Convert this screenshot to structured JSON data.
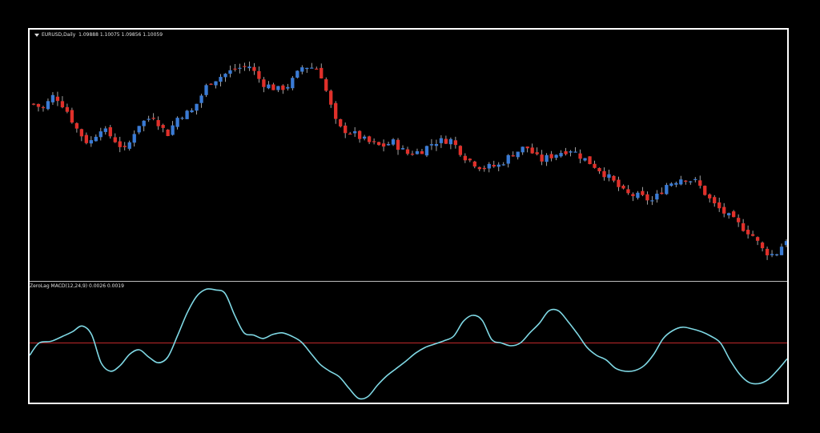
{
  "price_panel": {
    "symbol": "EURUSD,Daily",
    "ohlc_text": "1.09888 1.10075 1.09856 1.10059"
  },
  "macd_panel": {
    "title": "ZeroLag MACD(12,24,9) 0.0026 0.0019"
  },
  "colors": {
    "background": "#000000",
    "bull": "#3a7bd5",
    "bear": "#e0302a",
    "macd_line": "#7fd8e4",
    "zero_line": "#c0282a",
    "frame": "#ffffff"
  },
  "chart_data": [
    {
      "type": "candlestick",
      "title": "EURUSD,Daily",
      "y_range": [
        0,
        100
      ],
      "close_path": [
        [
          0,
          72
        ],
        [
          4,
          70
        ],
        [
          9,
          76
        ],
        [
          14,
          70
        ],
        [
          19,
          61
        ],
        [
          24,
          55
        ],
        [
          29,
          62
        ],
        [
          34,
          58
        ],
        [
          40,
          52
        ],
        [
          45,
          63
        ],
        [
          52,
          67
        ],
        [
          58,
          59
        ],
        [
          63,
          67
        ],
        [
          69,
          69
        ],
        [
          76,
          81
        ],
        [
          82,
          84
        ],
        [
          88,
          87
        ],
        [
          94,
          88
        ],
        [
          99,
          81
        ],
        [
          106,
          78
        ],
        [
          111,
          80
        ],
        [
          117,
          88
        ],
        [
          124,
          87
        ],
        [
          132,
          62
        ],
        [
          138,
          60
        ],
        [
          145,
          56
        ],
        [
          151,
          54
        ],
        [
          156,
          56
        ],
        [
          162,
          51
        ],
        [
          168,
          52
        ],
        [
          174,
          56
        ],
        [
          181,
          57
        ],
        [
          188,
          49
        ],
        [
          195,
          45
        ],
        [
          202,
          46
        ],
        [
          208,
          51
        ],
        [
          214,
          54
        ],
        [
          220,
          48
        ],
        [
          227,
          51
        ],
        [
          233,
          53
        ],
        [
          239,
          49
        ],
        [
          245,
          45
        ],
        [
          251,
          40
        ],
        [
          257,
          34
        ],
        [
          263,
          33
        ],
        [
          269,
          31
        ],
        [
          275,
          38
        ],
        [
          282,
          41
        ],
        [
          288,
          39
        ],
        [
          295,
          30
        ],
        [
          300,
          26
        ],
        [
          305,
          22
        ],
        [
          312,
          17
        ],
        [
          317,
          10
        ],
        [
          322,
          8
        ],
        [
          327,
          15
        ]
      ]
    },
    {
      "type": "line",
      "title": "ZeroLag MACD(12,24,9) 0.0026 0.0019",
      "y_range": [
        -100,
        100
      ],
      "reference_line": 0,
      "series": [
        {
          "values": [
            [
              0,
              -22
            ],
            [
              4,
              0
            ],
            [
              9,
              3
            ],
            [
              14,
              12
            ],
            [
              18,
              20
            ],
            [
              22,
              30
            ],
            [
              26,
              15
            ],
            [
              30,
              -35
            ],
            [
              34,
              -50
            ],
            [
              38,
              -40
            ],
            [
              42,
              -20
            ],
            [
              46,
              -12
            ],
            [
              50,
              -25
            ],
            [
              54,
              -35
            ],
            [
              58,
              -25
            ],
            [
              62,
              12
            ],
            [
              66,
              52
            ],
            [
              70,
              82
            ],
            [
              74,
              95
            ],
            [
              78,
              94
            ],
            [
              82,
              88
            ],
            [
              86,
              50
            ],
            [
              90,
              18
            ],
            [
              94,
              14
            ],
            [
              98,
              8
            ],
            [
              102,
              15
            ],
            [
              106,
              18
            ],
            [
              110,
              12
            ],
            [
              114,
              2
            ],
            [
              118,
              -18
            ],
            [
              122,
              -38
            ],
            [
              126,
              -50
            ],
            [
              130,
              -60
            ],
            [
              134,
              -80
            ],
            [
              138,
              -98
            ],
            [
              142,
              -95
            ],
            [
              146,
              -75
            ],
            [
              150,
              -58
            ],
            [
              154,
              -45
            ],
            [
              158,
              -32
            ],
            [
              162,
              -18
            ],
            [
              166,
              -8
            ],
            [
              170,
              -2
            ],
            [
              174,
              4
            ],
            [
              178,
              12
            ],
            [
              182,
              38
            ],
            [
              186,
              49
            ],
            [
              190,
              40
            ],
            [
              194,
              6
            ],
            [
              198,
              0
            ],
            [
              202,
              -5
            ],
            [
              206,
              0
            ],
            [
              210,
              18
            ],
            [
              214,
              35
            ],
            [
              218,
              57
            ],
            [
              222,
              57
            ],
            [
              226,
              38
            ],
            [
              230,
              16
            ],
            [
              234,
              -8
            ],
            [
              238,
              -22
            ],
            [
              242,
              -30
            ],
            [
              246,
              -45
            ],
            [
              250,
              -50
            ],
            [
              254,
              -49
            ],
            [
              258,
              -40
            ],
            [
              262,
              -20
            ],
            [
              266,
              8
            ],
            [
              270,
              22
            ],
            [
              274,
              28
            ],
            [
              278,
              25
            ],
            [
              282,
              20
            ],
            [
              286,
              12
            ],
            [
              290,
              0
            ],
            [
              294,
              -30
            ],
            [
              298,
              -55
            ],
            [
              302,
              -70
            ],
            [
              306,
              -72
            ],
            [
              310,
              -65
            ],
            [
              314,
              -48
            ],
            [
              318,
              -28
            ]
          ]
        }
      ]
    }
  ]
}
